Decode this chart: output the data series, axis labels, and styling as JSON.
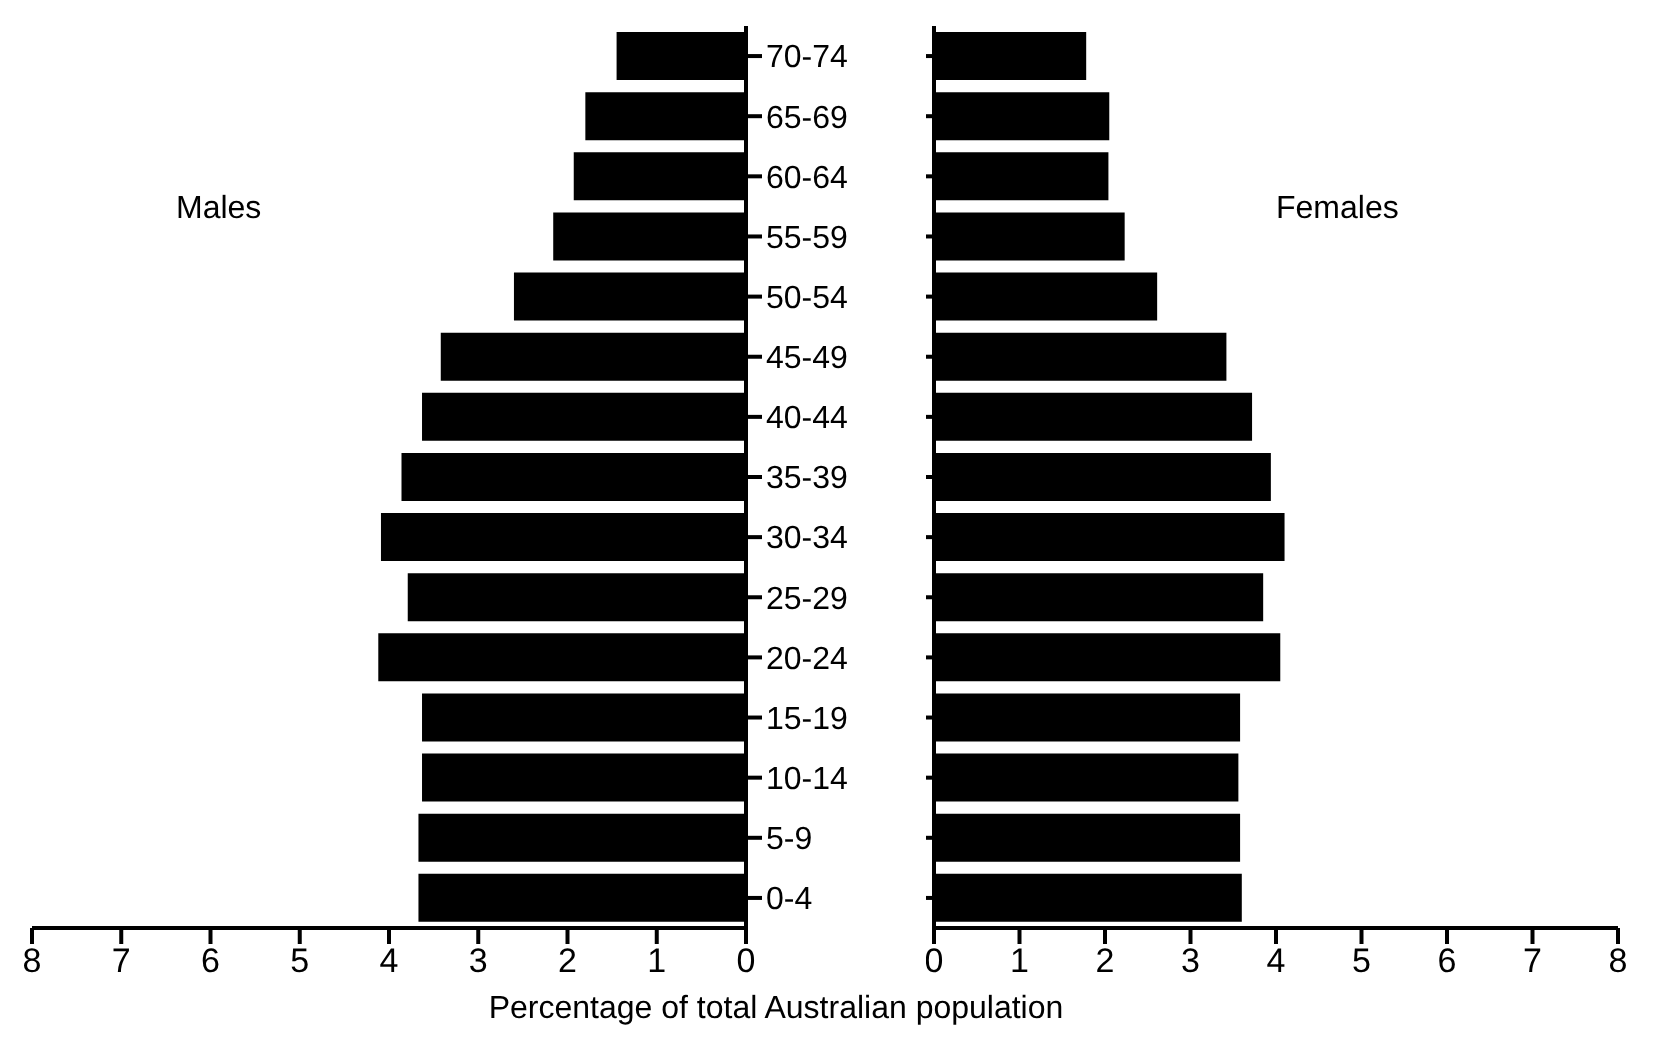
{
  "chart_data": [
    {
      "type": "bar",
      "orientation": "horizontal",
      "categories": [
        "70-74",
        "65-69",
        "60-64",
        "55-59",
        "50-54",
        "45-49",
        "40-44",
        "35-39",
        "30-34",
        "25-29",
        "20-24",
        "15-19",
        "10-14",
        "5-9",
        "0-4"
      ],
      "series": [
        {
          "name": "Males",
          "color": "#000000",
          "values": [
            1.45,
            1.8,
            1.93,
            2.16,
            2.6,
            3.42,
            3.63,
            3.86,
            4.09,
            3.79,
            4.12,
            3.63,
            3.63,
            3.67,
            3.67
          ]
        }
      ],
      "xlim": [
        8,
        0
      ],
      "xticks": [
        8,
        7,
        6,
        5,
        4,
        3,
        2,
        1,
        0
      ],
      "xlabel": "Percentage of total Australian population",
      "grid": false,
      "legend": false
    },
    {
      "type": "bar",
      "orientation": "horizontal",
      "categories": [
        null,
        null,
        null,
        null,
        null,
        null,
        null,
        null,
        null,
        null,
        null,
        null,
        null,
        null,
        null
      ],
      "series": [
        {
          "name": "Females",
          "color": "#000000",
          "values": [
            1.78,
            2.05,
            2.04,
            2.23,
            2.61,
            3.42,
            3.72,
            3.94,
            4.1,
            3.85,
            4.05,
            3.58,
            3.56,
            3.58,
            3.6
          ]
        }
      ],
      "xlim": [
        0,
        8
      ],
      "xticks": [
        0,
        1,
        2,
        3,
        4,
        5,
        6,
        7,
        8
      ],
      "grid": false,
      "legend": false
    }
  ]
}
